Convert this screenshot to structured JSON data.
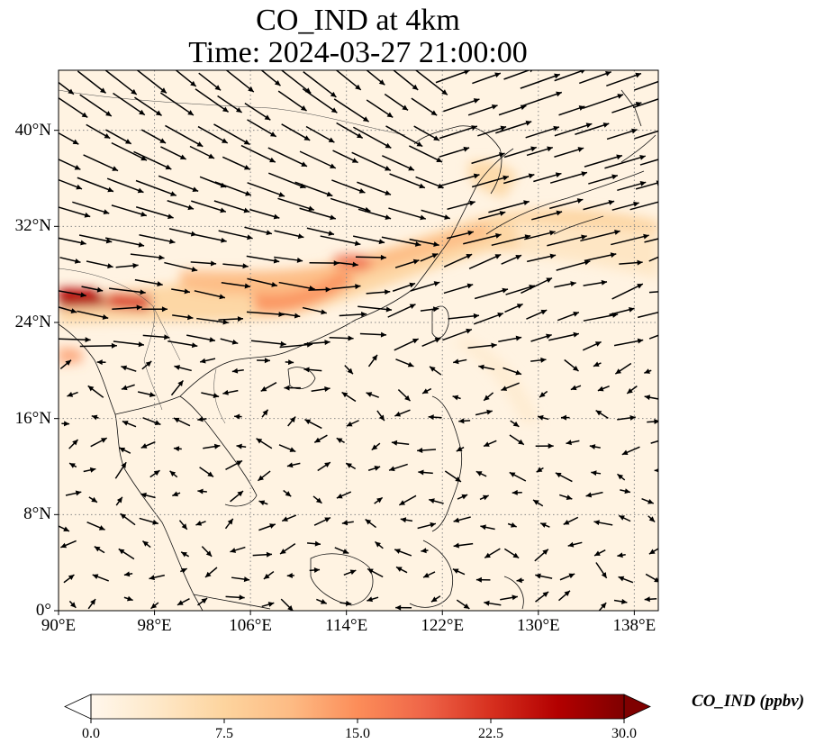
{
  "title": {
    "line1": "CO_IND at 4km",
    "line2": "Time: 2024-03-27 21:00:00"
  },
  "map": {
    "variable": "CO_IND",
    "lon_range": [
      90,
      140
    ],
    "lat_range": [
      0,
      45
    ],
    "lon_ticks": [
      "90°E",
      "98°E",
      "106°E",
      "114°E",
      "122°E",
      "130°E",
      "138°E"
    ],
    "lat_ticks": [
      "0°",
      "8°N",
      "16°N",
      "24°N",
      "32°N",
      "40°N"
    ],
    "gridlines": "dotted",
    "overlay": "wind vectors",
    "colormap": "OrRd"
  },
  "colorbar": {
    "label": "CO_IND (ppbv)",
    "min": 0,
    "max": 30,
    "ticks": [
      "0.0",
      "7.5",
      "15.0",
      "22.5",
      "30.0"
    ],
    "extend": "both",
    "colors": [
      "#fff7ec",
      "#fee8c8",
      "#fdd49e",
      "#fdbb84",
      "#fc8d59",
      "#ef6548",
      "#d7301f",
      "#b30000",
      "#7f0000"
    ]
  }
}
